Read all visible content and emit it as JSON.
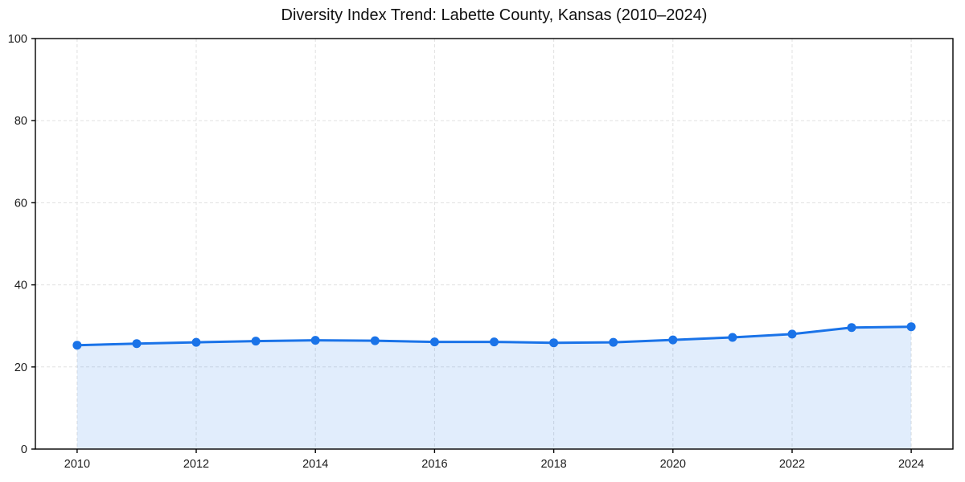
{
  "chart_data": {
    "type": "line",
    "title": "Diversity Index Trend: Labette County, Kansas (2010–2024)",
    "x": [
      2010,
      2011,
      2012,
      2013,
      2014,
      2015,
      2016,
      2017,
      2018,
      2019,
      2020,
      2021,
      2022,
      2023,
      2024
    ],
    "series": [
      {
        "name": "Diversity Index",
        "values": [
          25.3,
          25.7,
          26.0,
          26.3,
          26.5,
          26.4,
          26.1,
          26.1,
          25.9,
          26.0,
          26.6,
          27.2,
          28.0,
          29.6,
          29.8
        ]
      }
    ],
    "xlabel": "",
    "ylabel": "",
    "xlim": [
      2009.3,
      2024.7
    ],
    "ylim": [
      0,
      100
    ],
    "xticks": [
      2010,
      2012,
      2014,
      2016,
      2018,
      2020,
      2022,
      2024
    ],
    "yticks": [
      0,
      20,
      40,
      60,
      80,
      100
    ],
    "grid": true,
    "legend": "none",
    "colors": {
      "line": "#1a73e8",
      "marker": "#1a73e8",
      "fill": "rgba(26,115,232,0.13)",
      "gridline": "#e0e0e0",
      "spine": "#000000",
      "text": "#1a1a1a"
    },
    "marker": "circle"
  }
}
